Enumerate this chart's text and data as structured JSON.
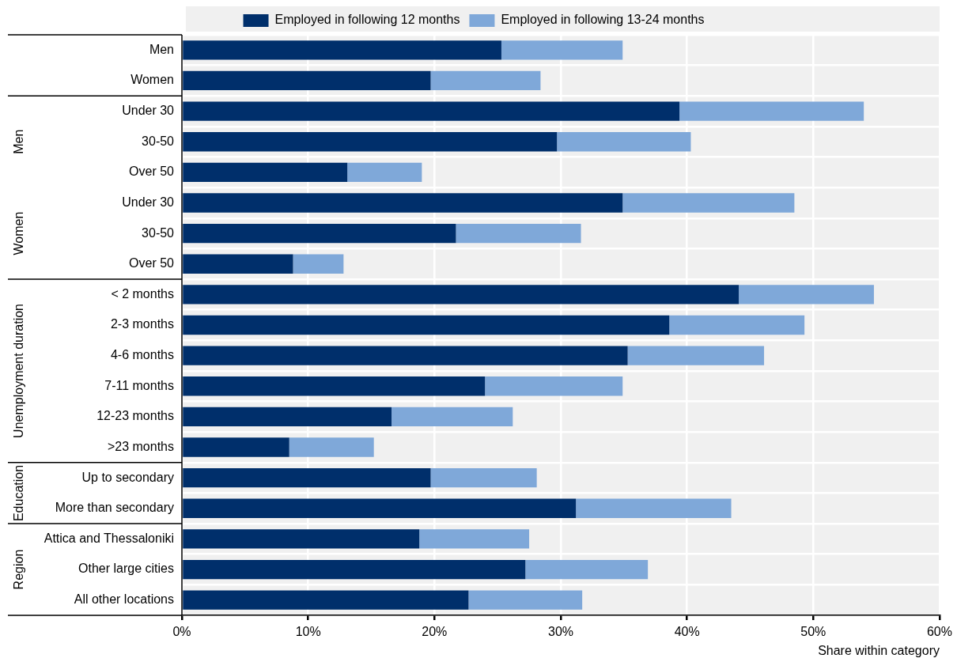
{
  "chart_data": {
    "type": "bar",
    "orientation": "horizontal",
    "stacked": true,
    "categories": [
      "Men",
      "Women",
      "Under 30",
      "30-50",
      "Over 50",
      "Under 30",
      "30-50",
      "Over 50",
      "< 2 months",
      "2-3 months",
      "4-6 months",
      "7-11 months",
      "12-23 months",
      ">23 months",
      "Up to secondary",
      "More than secondary",
      "Attica and Thessaloniki",
      "Other large cities",
      "All other locations"
    ],
    "series": [
      {
        "name": "Employed in following 12 months",
        "color": "#002f6b",
        "values": [
          25.3,
          19.7,
          39.4,
          29.7,
          13.1,
          34.9,
          21.7,
          8.8,
          44.1,
          38.6,
          35.3,
          24.0,
          16.6,
          8.5,
          19.7,
          31.2,
          18.8,
          27.2,
          22.7
        ]
      },
      {
        "name": "Employed in following 13-24 months",
        "color": "#7fa8d9",
        "values": [
          9.6,
          8.7,
          14.6,
          10.6,
          5.9,
          13.6,
          9.9,
          4.0,
          10.7,
          10.7,
          10.8,
          10.9,
          9.6,
          6.7,
          8.4,
          12.3,
          8.7,
          9.7,
          9.0
        ]
      }
    ],
    "xlim": [
      0,
      60
    ],
    "xticks": [
      {
        "value": 0,
        "label": "0%"
      },
      {
        "value": 10,
        "label": "10%"
      },
      {
        "value": 20,
        "label": "20%"
      },
      {
        "value": 30,
        "label": "30%"
      },
      {
        "value": 40,
        "label": "40%"
      },
      {
        "value": 50,
        "label": "50%"
      },
      {
        "value": 60,
        "label": "60%"
      }
    ],
    "xlabel": "Share within category",
    "annotations": [
      "Men",
      "Women",
      "Unemployment duration",
      "Education",
      "Region"
    ],
    "grid": true,
    "legend": "top"
  }
}
